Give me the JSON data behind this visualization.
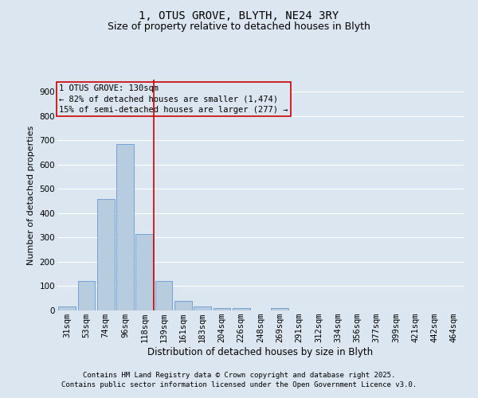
{
  "title": "1, OTUS GROVE, BLYTH, NE24 3RY",
  "subtitle": "Size of property relative to detached houses in Blyth",
  "xlabel": "Distribution of detached houses by size in Blyth",
  "ylabel": "Number of detached properties",
  "bar_color": "#b8ccdf",
  "bar_edge_color": "#6699cc",
  "background_color": "#dce6f0",
  "grid_color": "#ffffff",
  "categories": [
    "31sqm",
    "53sqm",
    "74sqm",
    "96sqm",
    "118sqm",
    "139sqm",
    "161sqm",
    "183sqm",
    "204sqm",
    "226sqm",
    "248sqm",
    "269sqm",
    "291sqm",
    "312sqm",
    "334sqm",
    "356sqm",
    "377sqm",
    "399sqm",
    "421sqm",
    "442sqm",
    "464sqm"
  ],
  "values": [
    15,
    120,
    460,
    685,
    315,
    120,
    40,
    15,
    10,
    10,
    0,
    10,
    0,
    0,
    0,
    0,
    0,
    0,
    0,
    0,
    0
  ],
  "vline_color": "#cc0000",
  "vline_pos": 4.5,
  "annotation_text_line1": "1 OTUS GROVE: 130sqm",
  "annotation_text_line2": "← 82% of detached houses are smaller (1,474)",
  "annotation_text_line3": "15% of semi-detached houses are larger (277) →",
  "annotation_fontsize": 7.5,
  "title_fontsize": 10,
  "subtitle_fontsize": 9,
  "xlabel_fontsize": 8.5,
  "ylabel_fontsize": 8,
  "tick_fontsize": 7.5,
  "footer_line1": "Contains HM Land Registry data © Crown copyright and database right 2025.",
  "footer_line2": "Contains public sector information licensed under the Open Government Licence v3.0.",
  "footer_fontsize": 6.5,
  "ylim": [
    0,
    950
  ],
  "yticks": [
    0,
    100,
    200,
    300,
    400,
    500,
    600,
    700,
    800,
    900
  ]
}
